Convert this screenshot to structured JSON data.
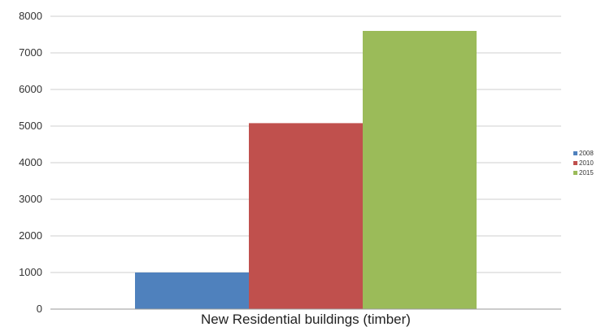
{
  "chart_data": {
    "type": "bar",
    "categories": [
      "New Residential buildings (timber)"
    ],
    "series": [
      {
        "name": "2008",
        "values": [
          1000
        ],
        "color": "#4f81bd"
      },
      {
        "name": "2010",
        "values": [
          5080
        ],
        "color": "#c0504d"
      },
      {
        "name": "2015",
        "values": [
          7600
        ],
        "color": "#9bbb59"
      }
    ],
    "ylim": [
      0,
      8000
    ],
    "yticks": [
      0,
      1000,
      2000,
      3000,
      4000,
      5000,
      6000,
      7000,
      8000
    ],
    "grid": true,
    "legend_position": "right",
    "title": "",
    "xlabel": "",
    "ylabel": ""
  }
}
